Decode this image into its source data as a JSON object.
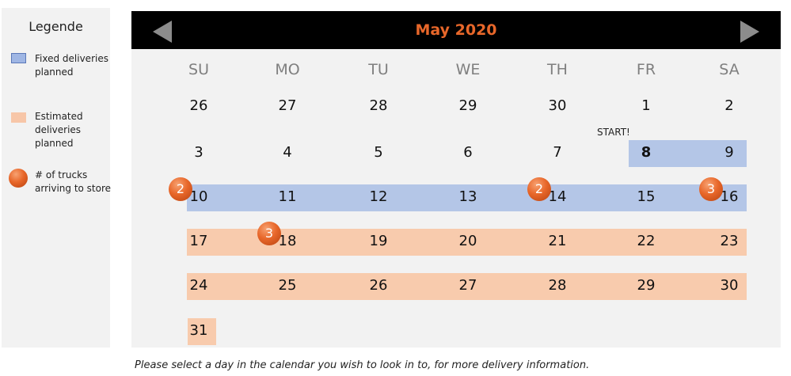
{
  "legend": {
    "title": "Legende",
    "items": [
      {
        "label": "Fixed deliveries planned",
        "color": "#b4c6e7"
      },
      {
        "label": "Estimated deliveries planned",
        "color": "#f8cbad"
      },
      {
        "label": "# of trucks arriving to store",
        "color": "#e8672a"
      }
    ]
  },
  "calendar": {
    "title": "May 2020",
    "prev_icon": "triangle-left-icon",
    "next_icon": "triangle-right-icon",
    "weekdays": [
      "SU",
      "MO",
      "TU",
      "WE",
      "TH",
      "FR",
      "SA"
    ],
    "start_label": "START!",
    "colors": {
      "fixed": "#b4c6e7",
      "estimated": "#f8cbad",
      "truck": "#e8672a",
      "title": "#e8672a"
    },
    "weeks": [
      [
        {
          "day": "26",
          "status": "none"
        },
        {
          "day": "27",
          "status": "none"
        },
        {
          "day": "28",
          "status": "none"
        },
        {
          "day": "29",
          "status": "none"
        },
        {
          "day": "30",
          "status": "none"
        },
        {
          "day": "1",
          "status": "none"
        },
        {
          "day": "2",
          "status": "none"
        }
      ],
      [
        {
          "day": "3",
          "status": "none"
        },
        {
          "day": "4",
          "status": "none"
        },
        {
          "day": "5",
          "status": "none"
        },
        {
          "day": "6",
          "status": "none"
        },
        {
          "day": "7",
          "status": "none"
        },
        {
          "day": "8",
          "status": "fixed"
        },
        {
          "day": "9",
          "status": "fixed"
        }
      ],
      [
        {
          "day": "10",
          "status": "fixed",
          "trucks": "2"
        },
        {
          "day": "11",
          "status": "fixed"
        },
        {
          "day": "12",
          "status": "fixed"
        },
        {
          "day": "13",
          "status": "fixed"
        },
        {
          "day": "14",
          "status": "fixed",
          "trucks": "2"
        },
        {
          "day": "15",
          "status": "fixed"
        },
        {
          "day": "16",
          "status": "fixed",
          "trucks": "3"
        }
      ],
      [
        {
          "day": "17",
          "status": "estimated"
        },
        {
          "day": "18",
          "status": "estimated",
          "trucks": "3"
        },
        {
          "day": "19",
          "status": "estimated"
        },
        {
          "day": "20",
          "status": "estimated"
        },
        {
          "day": "21",
          "status": "estimated"
        },
        {
          "day": "22",
          "status": "estimated"
        },
        {
          "day": "23",
          "status": "estimated"
        }
      ],
      [
        {
          "day": "24",
          "status": "estimated"
        },
        {
          "day": "25",
          "status": "estimated"
        },
        {
          "day": "26",
          "status": "estimated"
        },
        {
          "day": "27",
          "status": "estimated"
        },
        {
          "day": "28",
          "status": "estimated"
        },
        {
          "day": "29",
          "status": "estimated"
        },
        {
          "day": "30",
          "status": "estimated"
        }
      ],
      [
        {
          "day": "31",
          "status": "estimated"
        }
      ]
    ]
  },
  "footer": {
    "note": "Please select a day in the calendar you wish to look in to, for more delivery information."
  }
}
